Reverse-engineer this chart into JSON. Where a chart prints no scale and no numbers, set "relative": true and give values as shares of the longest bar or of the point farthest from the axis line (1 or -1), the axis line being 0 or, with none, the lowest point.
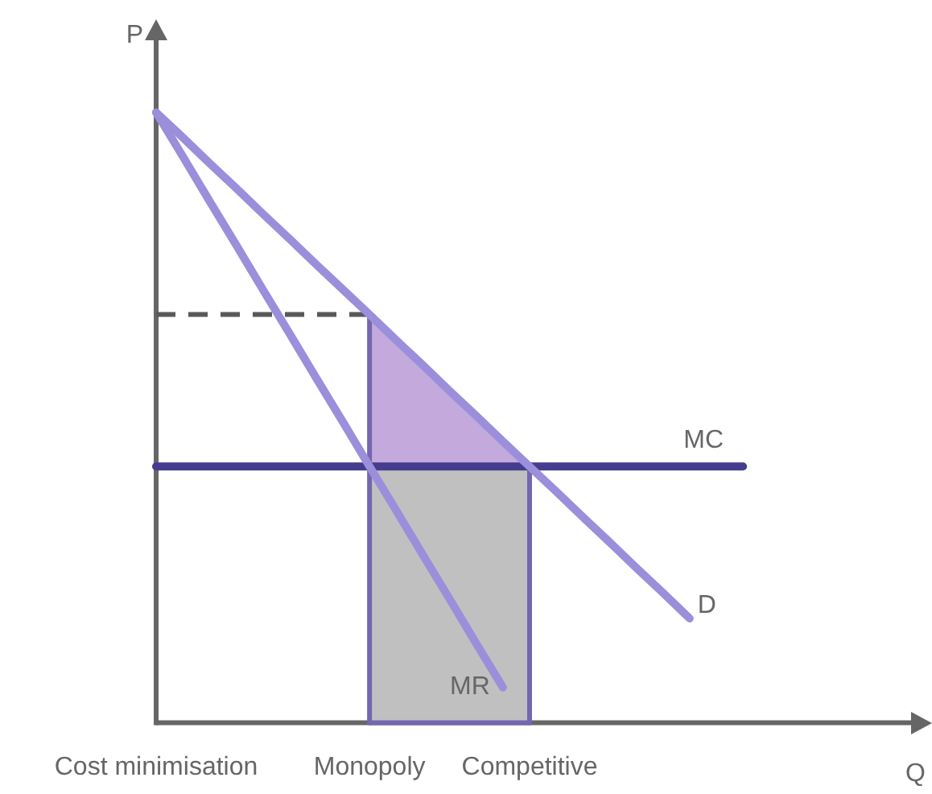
{
  "chart_data": {
    "type": "line",
    "relative": true,
    "ylabel": "P",
    "xlabel": "Q",
    "categories": [
      "Cost minimisation",
      null,
      null,
      null,
      null,
      null,
      null,
      null,
      "Monopoly",
      null,
      null,
      null,
      null,
      null,
      "Competitive",
      null,
      null,
      null,
      null,
      null,
      null,
      null,
      null,
      null,
      null,
      null,
      null,
      null,
      null
    ],
    "tick_labels": "x",
    "series": [
      {
        "type": "area",
        "color": "#c3a9dc",
        "values": [
          null,
          null,
          null,
          null,
          null,
          null,
          null,
          null,
          0.669,
          0.627,
          0.586,
          0.544,
          0.503,
          0.461,
          0.42,
          null,
          null,
          null,
          null,
          null,
          null,
          null,
          null,
          null,
          null,
          null,
          null,
          null,
          null
        ]
      },
      {
        "type": "area",
        "color": "#c0c0c0",
        "values": [
          null,
          null,
          null,
          null,
          null,
          null,
          null,
          null,
          0.42,
          0.42,
          0.42,
          0.42,
          0.42,
          0.42,
          0.42,
          null,
          null,
          null,
          null,
          null,
          null,
          null,
          null,
          null,
          null,
          null,
          null,
          null,
          null
        ]
      },
      {
        "color": "#7466b0",
        "x": [
          "Monopoly",
          "Monopoly"
        ],
        "values": [
          0,
          0.669
        ]
      },
      {
        "color": "#7466b0",
        "x": [
          "Competitive",
          "Competitive"
        ],
        "values": [
          0,
          0.42
        ]
      },
      {
        "color": "#7466b0",
        "x": [
          "Monopoly",
          "Competitive"
        ],
        "values": [
          0,
          0
        ]
      },
      {
        "color": "#595959",
        "line_style": "dashed",
        "values": [
          0.669,
          0.669,
          0.669,
          0.669,
          0.669,
          0.669,
          0.669,
          0.669,
          0.669,
          null,
          null,
          null,
          null,
          null,
          null,
          null,
          null,
          null,
          null,
          null,
          null,
          null,
          null,
          null,
          null,
          null,
          null,
          null,
          null
        ]
      },
      {
        "name": "MC",
        "color": "#463c8e",
        "values": [
          0.42,
          0.42,
          0.42,
          0.42,
          0.42,
          0.42,
          0.42,
          0.42,
          0.42,
          0.42,
          0.42,
          0.42,
          0.42,
          0.42,
          0.42,
          0.42,
          0.42,
          0.42,
          0.42,
          0.42,
          0.42,
          0.42,
          0.42,
          null,
          null,
          null,
          null,
          null,
          null
        ]
      },
      {
        "name": "D",
        "color": "#9b8fdb",
        "values": [
          1,
          0.959,
          0.917,
          0.876,
          0.834,
          0.793,
          0.751,
          0.71,
          0.669,
          0.627,
          0.586,
          0.544,
          0.503,
          0.461,
          0.42,
          0.379,
          0.337,
          0.296,
          0.254,
          0.213,
          0.171,
          null,
          null,
          null,
          null,
          null,
          null,
          null,
          null
        ]
      },
      {
        "name": "MR",
        "color": "#9b8fdb",
        "values": [
          1,
          0.928,
          0.855,
          0.783,
          0.71,
          0.638,
          0.565,
          0.493,
          0.42,
          0.348,
          0.275,
          0.203,
          0.13,
          0.058,
          null,
          null,
          null,
          null,
          null,
          null,
          null,
          null,
          null,
          null,
          null,
          null,
          null,
          null,
          null
        ]
      }
    ]
  }
}
